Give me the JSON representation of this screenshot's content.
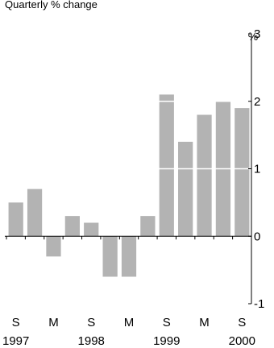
{
  "chart_data": {
    "type": "bar",
    "subtitle": "Quarterly % change",
    "ylabel": "%",
    "ylim": [
      -1,
      3
    ],
    "yticks": [
      -1,
      0,
      1,
      2,
      3
    ],
    "bar_color": "#b3b3b3",
    "categories": [
      "Sep 1997",
      "Dec 1997",
      "Mar 1998",
      "Jun 1998",
      "Sep 1998",
      "Dec 1998",
      "Mar 1999",
      "Jun 1999",
      "Sep 1999",
      "Dec 1999",
      "Mar 2000",
      "Jun 2000",
      "Sep 2000"
    ],
    "values": [
      0.5,
      0.7,
      -0.3,
      0.3,
      0.2,
      -0.6,
      -0.6,
      0.3,
      2.1,
      1.4,
      1.8,
      2.0,
      1.9
    ],
    "x_tick_labels": [
      "S",
      "M",
      "S",
      "M",
      "S",
      "M",
      "S"
    ],
    "year_labels": [
      "1997",
      "1998",
      "1999",
      "2000"
    ],
    "grid": true
  }
}
